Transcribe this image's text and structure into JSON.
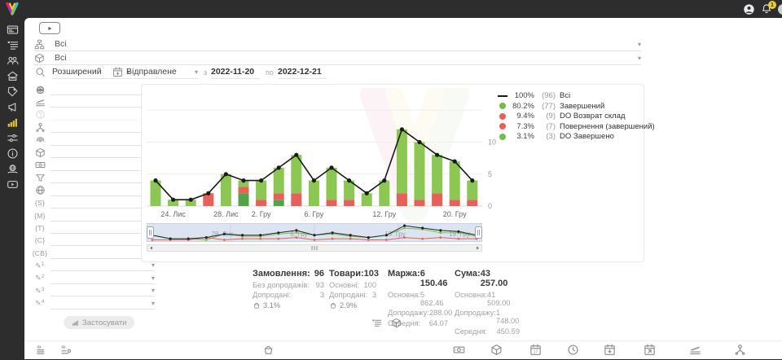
{
  "topbar": {
    "notification_count": "1"
  },
  "sidebar": {
    "items": [
      {
        "icon": "card-icon"
      },
      {
        "icon": "list-icon"
      },
      {
        "icon": "users-icon"
      },
      {
        "icon": "store-icon"
      },
      {
        "icon": "tag-icon"
      },
      {
        "icon": "megaphone-icon"
      },
      {
        "icon": "chart-bars-icon",
        "active": true
      },
      {
        "icon": "sliders-icon"
      },
      {
        "icon": "info-icon"
      },
      {
        "icon": "world-hands-icon"
      },
      {
        "icon": "video-icon"
      }
    ]
  },
  "filters": {
    "rows": [
      {
        "icon": "sitemap-icon",
        "value": "Всі"
      },
      {
        "icon": "package-icon",
        "value": "Всі"
      }
    ],
    "search": {
      "mode": "Розширений",
      "date_type": "Відправлене",
      "from_label": "з",
      "from_value": "2022-11-20",
      "to_label": "по",
      "to_value": "2022-12-21"
    }
  },
  "left_panel": {
    "rows": [
      {
        "icon": "world-solid-icon"
      },
      {
        "icon": "ruler-icon"
      },
      {
        "icon": "question-icon",
        "disabled": true
      },
      {
        "icon": "org-icon"
      },
      {
        "icon": "fingerprint-icon"
      },
      {
        "icon": "package-icon"
      },
      {
        "icon": "money-icon"
      },
      {
        "icon": "funnel-icon"
      },
      {
        "icon": "globe-icon"
      },
      {
        "text": "{S}"
      },
      {
        "text": "{M}"
      },
      {
        "text": "{T}"
      },
      {
        "text": "{C}"
      },
      {
        "text": "{CB}"
      },
      {
        "text": "✎",
        "sub": "1"
      },
      {
        "text": "✎",
        "sub": "2"
      },
      {
        "text": "✎",
        "sub": "3"
      },
      {
        "text": "✎",
        "sub": "4"
      }
    ],
    "apply_label": "Застосувати"
  },
  "chart_data": {
    "type": "bar+line",
    "title": "",
    "ylim": [
      0,
      15
    ],
    "yticks": [
      0,
      5,
      10
    ],
    "grid_values": [
      0,
      5,
      10,
      15
    ],
    "colors": {
      "g": "#8cc653",
      "dg": "#52a447",
      "r": "#e8605a",
      "line": "#1a1a1a"
    },
    "x_tick_labels": [
      {
        "index": 1,
        "label": "24. Лис"
      },
      {
        "index": 4,
        "label": "28. Лис"
      },
      {
        "index": 6,
        "label": "2. Гру"
      },
      {
        "index": 9,
        "label": "6. Гру"
      },
      {
        "index": 13,
        "label": "12. Гру"
      },
      {
        "index": 17,
        "label": "20. Гру"
      }
    ],
    "bars": [
      [
        [
          "g",
          4
        ]
      ],
      [
        [
          "g",
          1
        ]
      ],
      [
        [
          "g",
          1
        ]
      ],
      [
        [
          "r",
          2
        ]
      ],
      [
        [
          "g",
          5
        ]
      ],
      [
        [
          "dg",
          2
        ],
        [
          "r",
          1
        ],
        [
          "g",
          1
        ]
      ],
      [
        [
          "r",
          1
        ],
        [
          "g",
          3
        ]
      ],
      [
        [
          "dg",
          1
        ],
        [
          "r",
          1
        ],
        [
          "g",
          4
        ]
      ],
      [
        [
          "r",
          2
        ],
        [
          "g",
          6
        ]
      ],
      [
        [
          "g",
          4
        ]
      ],
      [
        [
          "r",
          1
        ],
        [
          "g",
          5
        ]
      ],
      [
        [
          "r",
          1
        ],
        [
          "g",
          3
        ]
      ],
      [
        [
          "g",
          2
        ]
      ],
      [
        [
          "g",
          4
        ]
      ],
      [
        [
          "r",
          2
        ],
        [
          "g",
          10
        ]
      ],
      [
        [
          "r",
          1
        ],
        [
          "g",
          9
        ]
      ],
      [
        [
          "r",
          2
        ],
        [
          "g",
          6
        ]
      ],
      [
        [
          "r",
          1
        ],
        [
          "g",
          6
        ]
      ],
      [
        [
          "r",
          1
        ],
        [
          "g",
          3
        ]
      ]
    ],
    "line_total": [
      4,
      1,
      1,
      2,
      5,
      4,
      4,
      6,
      8,
      4,
      6,
      4,
      2,
      4,
      12,
      10,
      8,
      7,
      4
    ],
    "legend": [
      {
        "marker": "line",
        "color": "#1a1a1a",
        "percent": "100%",
        "count": "(96)",
        "label": "Всі"
      },
      {
        "marker": "dot",
        "color": "#6fbf45",
        "percent": "80.2%",
        "count": "(77)",
        "label": "Завершений"
      },
      {
        "marker": "dot",
        "color": "#e8605a",
        "percent": "9.4%",
        "count": "(9)",
        "label": "DO Возврат склад"
      },
      {
        "marker": "dot",
        "color": "#e8605a",
        "percent": "7.3%",
        "count": "(7)",
        "label": "Повернення (завершений)"
      },
      {
        "marker": "dot",
        "color": "#6fbf45",
        "percent": "3.1%",
        "count": "(3)",
        "label": "DO Завершено"
      }
    ]
  },
  "navigator": {
    "labels": [
      {
        "x": 93,
        "label": "28. Лис"
      },
      {
        "x": 187,
        "label": "6. Гру"
      },
      {
        "x": 305,
        "label": "13. Гру"
      },
      {
        "x": 384,
        "label": "19. Гру"
      }
    ]
  },
  "stats": {
    "columns": [
      {
        "title": "Замовлення:",
        "total": "96",
        "rows": [
          [
            "Без допродажів:",
            "93"
          ],
          [
            "Допродані:",
            "3"
          ]
        ],
        "foot_icon": "basket-icon",
        "foot_value": "3.1%"
      },
      {
        "title": "Товари:",
        "total": "103",
        "rows": [
          [
            "Основні:",
            "100"
          ],
          [
            "Допродані:",
            "3"
          ]
        ],
        "foot_icon": "basket-icon",
        "foot_value": "2.9%"
      },
      {
        "title": "Маржа:",
        "total": "6 150.46",
        "rows": [
          [
            "Основна:",
            "5 862.46"
          ],
          [
            "Допродажу:",
            "288.00"
          ],
          [
            "Середня:",
            "64.07"
          ]
        ]
      },
      {
        "title": "Сума:",
        "total": "43 257.00",
        "rows": [
          [
            "Основна:",
            "41 509.00"
          ],
          [
            "Допродажу:",
            "1 748.00"
          ],
          [
            "Середня:",
            "450.59"
          ]
        ]
      }
    ]
  },
  "chart_toggles": [
    {
      "icon": "list-icon"
    },
    {
      "icon": "package-icon"
    }
  ],
  "bottom_toolbar": {
    "items": [
      {
        "icon": "id-list-icon"
      },
      {
        "icon": "id-link-icon"
      },
      {
        "icon": "basket-icon"
      },
      {
        "icon": "money-icon"
      },
      {
        "icon": "package-icon"
      },
      {
        "icon": "calendar-date-icon"
      },
      {
        "icon": "clock-icon"
      },
      {
        "icon": "calendar-down-icon"
      },
      {
        "icon": "calendar-export-icon"
      },
      {
        "icon": "ruler-icon"
      },
      {
        "icon": "org-icon"
      }
    ]
  }
}
